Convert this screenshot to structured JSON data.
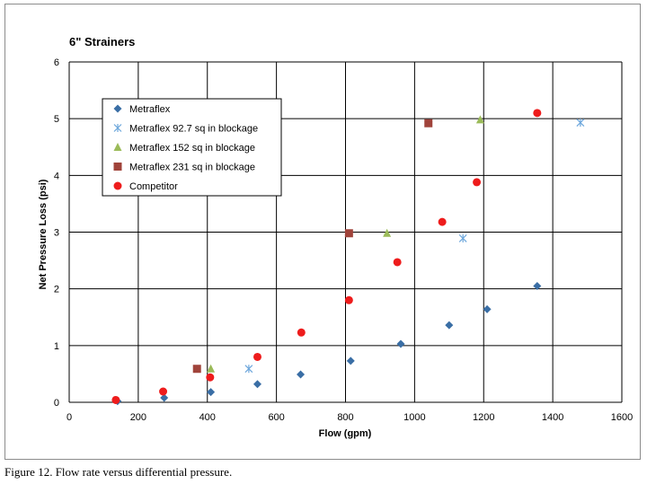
{
  "chart_data": {
    "type": "scatter",
    "title": "6\" Strainers",
    "xlabel": "Flow (gpm)",
    "ylabel": "Net Pressure Loss (psi)",
    "xlim": [
      0,
      1600
    ],
    "ylim": [
      0,
      6
    ],
    "xticks": [
      0,
      200,
      400,
      600,
      800,
      1000,
      1200,
      1400,
      1600
    ],
    "yticks": [
      0,
      1,
      2,
      3,
      4,
      5,
      6
    ],
    "grid": true,
    "legend_position": "top-left",
    "series": [
      {
        "name": "Metraflex",
        "marker": "diamond",
        "color": "#3a6ea5",
        "points": [
          [
            140,
            0.02
          ],
          [
            275,
            0.08
          ],
          [
            410,
            0.18
          ],
          [
            545,
            0.32
          ],
          [
            670,
            0.49
          ],
          [
            815,
            0.73
          ],
          [
            960,
            1.03
          ],
          [
            1100,
            1.36
          ],
          [
            1210,
            1.64
          ],
          [
            1355,
            2.05
          ]
        ]
      },
      {
        "name": "Metraflex 92.7 sq in blockage",
        "marker": "asterisk",
        "color": "#6fa8dc",
        "points": [
          [
            520,
            0.59
          ],
          [
            1140,
            2.89
          ],
          [
            1480,
            4.93
          ]
        ]
      },
      {
        "name": "Metraflex 152 sq in blockage",
        "marker": "triangle",
        "color": "#9bbb59",
        "points": [
          [
            410,
            0.59
          ],
          [
            920,
            2.98
          ],
          [
            1190,
            4.98
          ]
        ]
      },
      {
        "name": "Metraflex 231 sq in blockage",
        "marker": "square",
        "color": "#a0433a",
        "points": [
          [
            370,
            0.59
          ],
          [
            810,
            2.98
          ],
          [
            1040,
            4.92
          ]
        ]
      },
      {
        "name": "Competitor",
        "marker": "circle",
        "color": "#ee1c1c",
        "points": [
          [
            135,
            0.04
          ],
          [
            272,
            0.19
          ],
          [
            408,
            0.44
          ],
          [
            545,
            0.8
          ],
          [
            672,
            1.23
          ],
          [
            810,
            1.8
          ],
          [
            950,
            2.47
          ],
          [
            1080,
            3.18
          ],
          [
            1180,
            3.88
          ],
          [
            1355,
            5.1
          ]
        ]
      }
    ]
  },
  "caption": "Figure 12.  Flow rate versus differential pressure."
}
